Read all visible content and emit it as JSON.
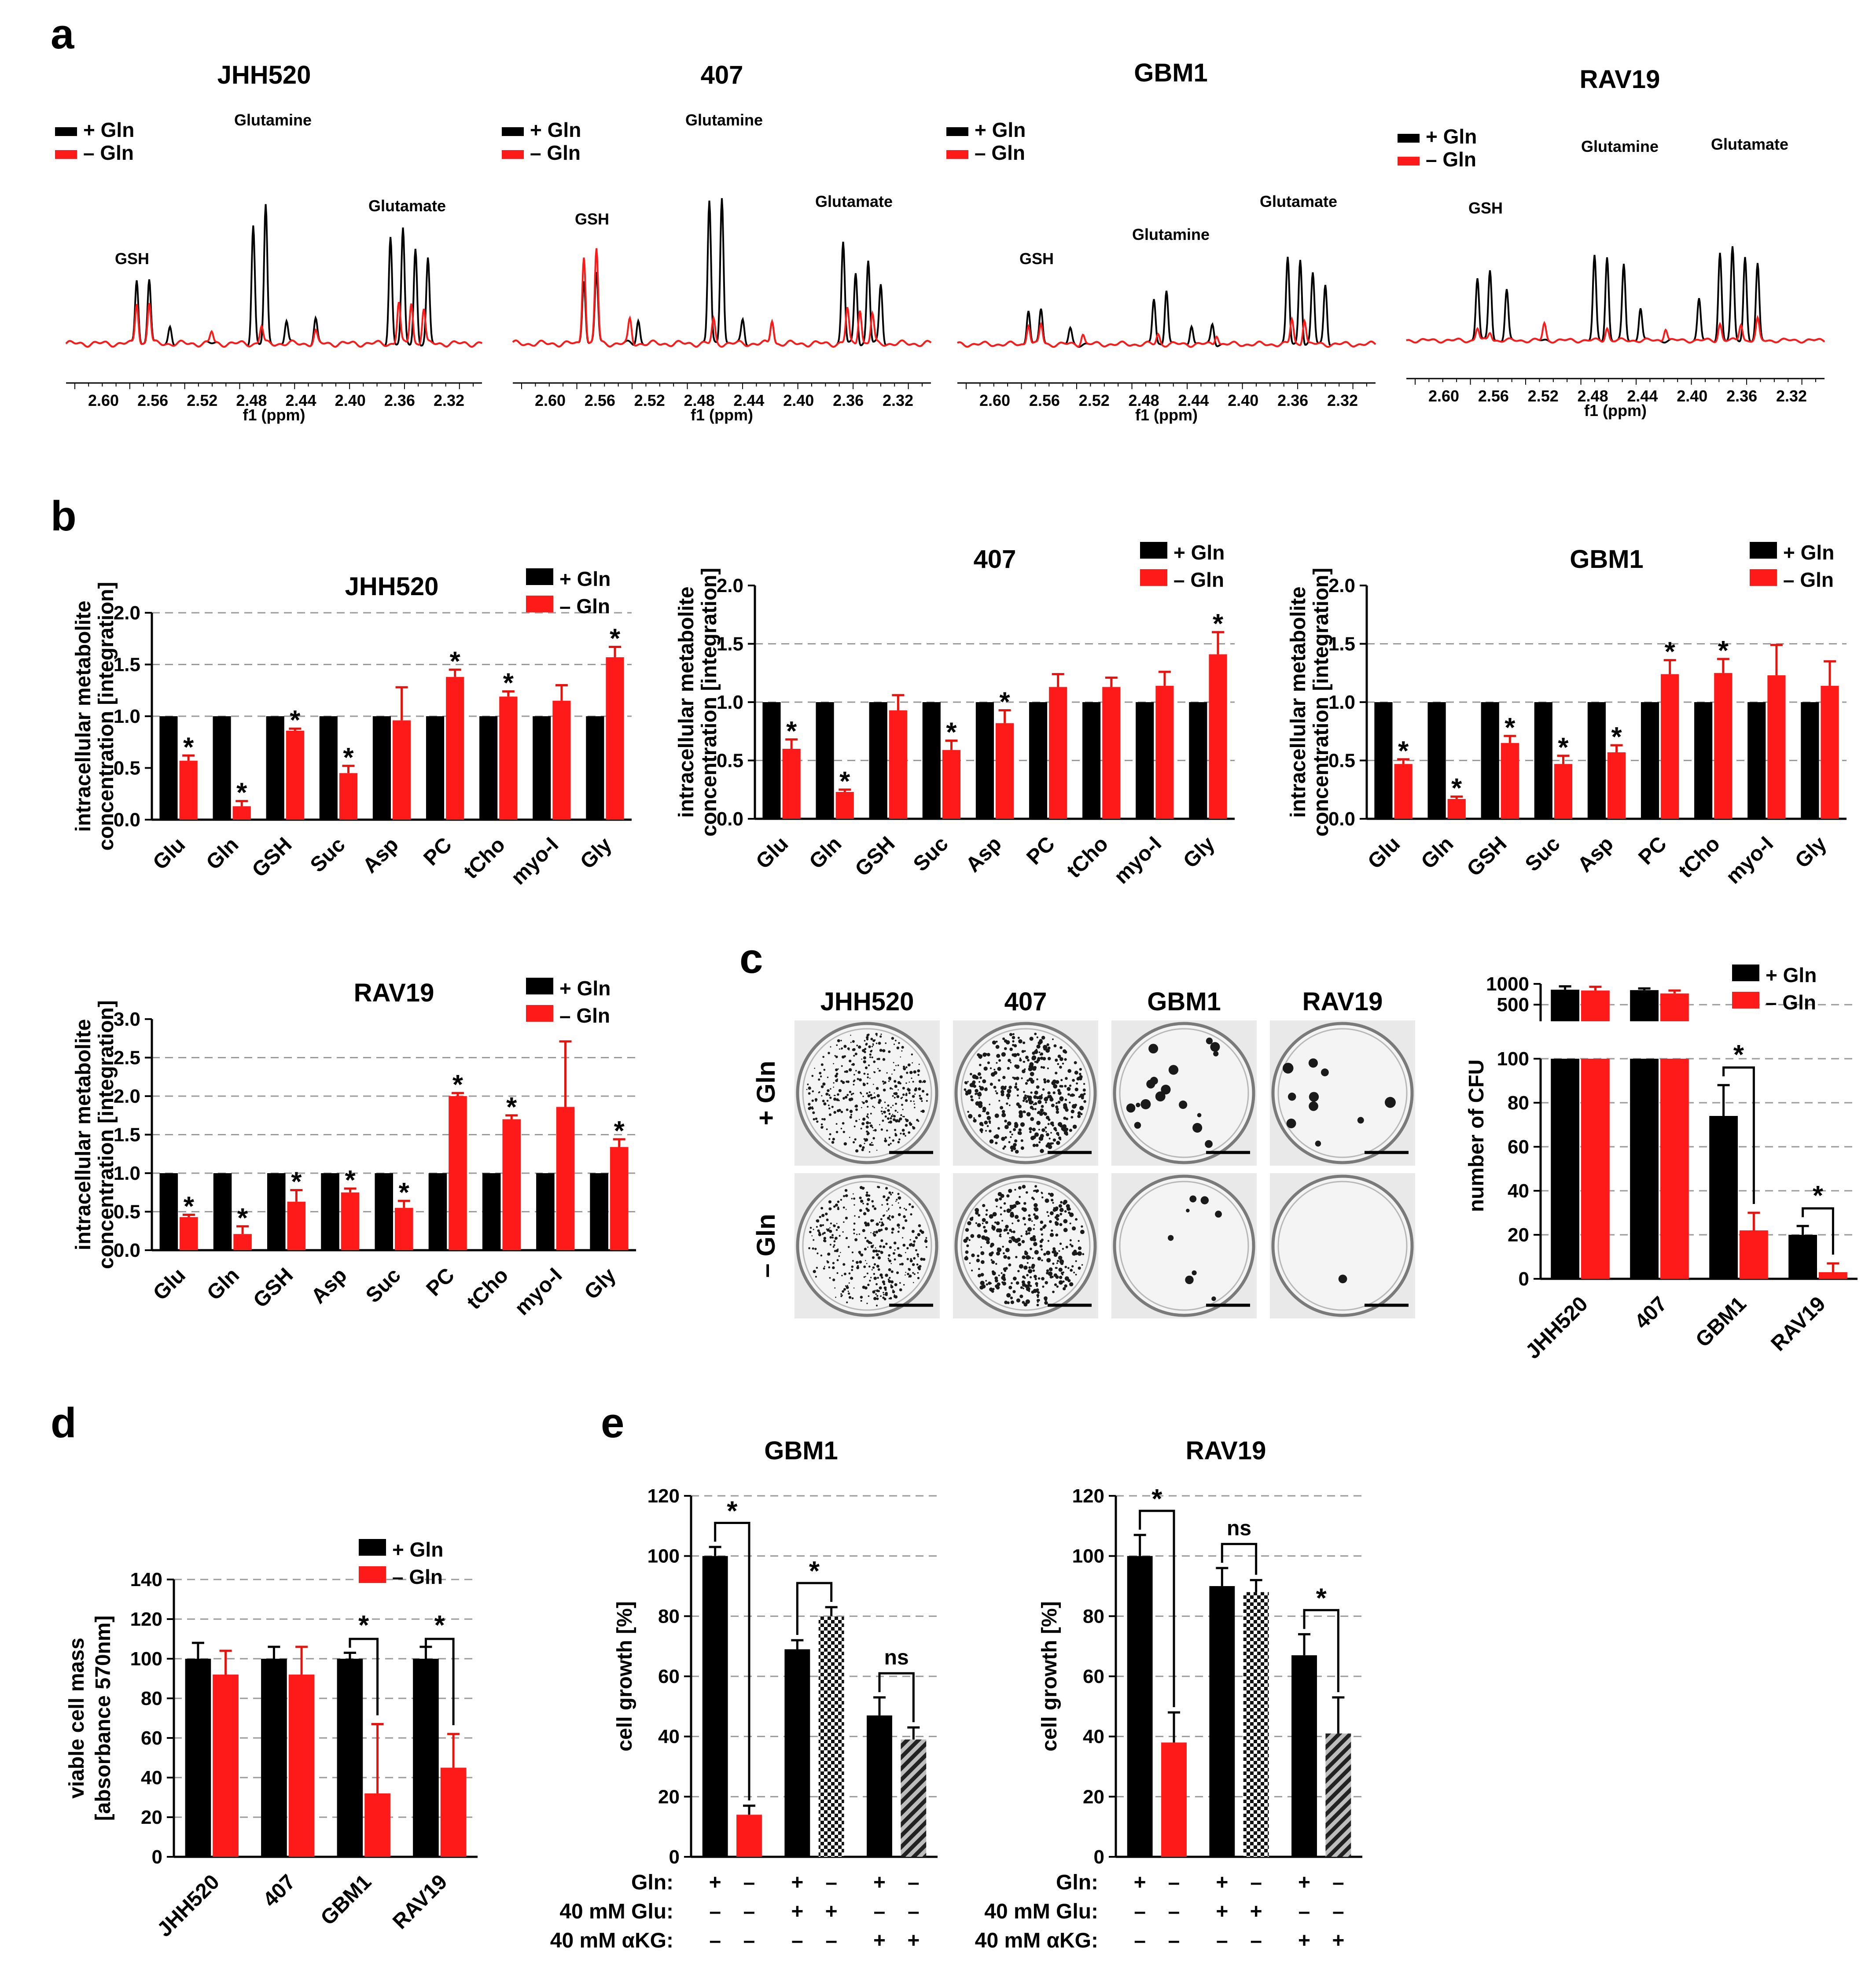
{
  "colors": {
    "plus": "#000000",
    "minus": "#ff1a1a"
  },
  "legend": {
    "plus": "+ Gln",
    "minus": "– Gln"
  },
  "star": "*",
  "panels": {
    "a": "a",
    "b": "b",
    "c": "c",
    "d": "d",
    "e": "e"
  },
  "a": {
    "xlabel": "f1 (ppm)",
    "ticks": [
      "2.60",
      "2.56",
      "2.52",
      "2.48",
      "2.44",
      "2.40",
      "2.36",
      "2.32"
    ],
    "spectra": [
      {
        "title": "JHH520",
        "peaks": [
          "GSH",
          "Glutamine",
          "Glutamate"
        ]
      },
      {
        "title": "407",
        "peaks": [
          "GSH",
          "Glutamine",
          "Glutamate"
        ]
      },
      {
        "title": "GBM1",
        "peaks": [
          "GSH",
          "Glutamine",
          "Glutamate"
        ]
      },
      {
        "title": "RAV19",
        "peaks": [
          "GSH",
          "Glutamine",
          "Glutamate"
        ]
      }
    ]
  },
  "b": {
    "ylabel1": "intracellular metabolite",
    "ylabel2": "concentration [integration]"
  },
  "c": {
    "cells": [
      "JHH520",
      "407",
      "GBM1",
      "RAV19"
    ],
    "rows": [
      "+ Gln",
      "– Gln"
    ],
    "ylabel": "number of CFU"
  },
  "d": {
    "ylabel1": "viable cell mass",
    "ylabel2": "[absorbance 570nm]"
  },
  "e": {
    "ylabel": "cell growth [%]",
    "row_labels": [
      "Gln:",
      "40 mM Glu:",
      "40 mM αKG:"
    ],
    "sign_rows": [
      [
        "+",
        "–",
        "+",
        "–",
        "+",
        "–"
      ],
      [
        "–",
        "–",
        "+",
        "+",
        "–",
        "–"
      ],
      [
        "–",
        "–",
        "–",
        "–",
        "+",
        "+"
      ]
    ],
    "ns": "ns"
  },
  "chart_data": [
    {
      "type": "bar",
      "title": "JHH520",
      "ylabel": "intracellular metabolite concentration [integration]",
      "categories": [
        "Glu",
        "Gln",
        "GSH",
        "Suc",
        "Asp",
        "PC",
        "tCho",
        "myo-I",
        "Gly"
      ],
      "ylim": [
        0,
        2.0
      ],
      "yticks": [
        "0.0",
        "0.5",
        "1.0",
        "1.5",
        "2.0"
      ],
      "grid": [
        1.0,
        1.5,
        2.0
      ],
      "series": [
        {
          "name": "+ Gln",
          "values": [
            1,
            1,
            1,
            1,
            1,
            1,
            1,
            1,
            1
          ],
          "errors": [
            0,
            0,
            0,
            0,
            0,
            0,
            0,
            0,
            0
          ]
        },
        {
          "name": "– Gln",
          "values": [
            0.57,
            0.13,
            0.86,
            0.45,
            0.96,
            1.38,
            1.19,
            1.15,
            1.57
          ],
          "errors": [
            0.05,
            0.05,
            0.02,
            0.07,
            0.32,
            0.07,
            0.05,
            0.15,
            0.1
          ],
          "sig": [
            true,
            true,
            true,
            true,
            false,
            true,
            true,
            false,
            true
          ]
        }
      ]
    },
    {
      "type": "bar",
      "title": "407",
      "ylabel": "intracellular metabolite concentration [integration]",
      "categories": [
        "Glu",
        "Gln",
        "GSH",
        "Suc",
        "Asp",
        "PC",
        "tCho",
        "myo-I",
        "Gly"
      ],
      "ylim": [
        0,
        2.0
      ],
      "yticks": [
        "0.0",
        "0.5",
        "1.0",
        "1.5",
        "2.0"
      ],
      "grid": [
        0.5,
        1.0,
        1.5
      ],
      "series": [
        {
          "name": "+ Gln",
          "values": [
            1,
            1,
            1,
            1,
            1,
            1,
            1,
            1,
            1
          ],
          "errors": [
            0,
            0,
            0,
            0,
            0,
            0,
            0,
            0,
            0
          ]
        },
        {
          "name": "– Gln",
          "values": [
            0.6,
            0.23,
            0.93,
            0.59,
            0.82,
            1.13,
            1.13,
            1.14,
            1.41
          ],
          "errors": [
            0.08,
            0.02,
            0.13,
            0.08,
            0.11,
            0.11,
            0.08,
            0.12,
            0.19
          ],
          "sig": [
            true,
            true,
            false,
            true,
            true,
            false,
            false,
            false,
            true
          ]
        }
      ]
    },
    {
      "type": "bar",
      "title": "GBM1",
      "ylabel": "intracellular metabolite concentration [integration]",
      "categories": [
        "Glu",
        "Gln",
        "GSH",
        "Suc",
        "Asp",
        "PC",
        "tCho",
        "myo-I",
        "Gly"
      ],
      "ylim": [
        0,
        2.0
      ],
      "yticks": [
        "0.0",
        "0.5",
        "1.0",
        "1.5",
        "2.0"
      ],
      "grid": [
        0.5,
        1.0,
        1.5
      ],
      "series": [
        {
          "name": "+ Gln",
          "values": [
            1,
            1,
            1,
            1,
            1,
            1,
            1,
            1,
            1
          ],
          "errors": [
            0,
            0,
            0,
            0,
            0,
            0,
            0,
            0,
            0
          ]
        },
        {
          "name": "– Gln",
          "values": [
            0.47,
            0.17,
            0.65,
            0.47,
            0.57,
            1.24,
            1.25,
            1.23,
            1.14
          ],
          "errors": [
            0.04,
            0.02,
            0.06,
            0.07,
            0.06,
            0.12,
            0.12,
            0.26,
            0.21
          ],
          "sig": [
            true,
            true,
            true,
            true,
            true,
            true,
            true,
            false,
            false
          ]
        }
      ]
    },
    {
      "type": "bar",
      "title": "RAV19",
      "ylabel": "intracellular metabolite concentration [integration]",
      "categories": [
        "Glu",
        "Gln",
        "GSH",
        "Asp",
        "Suc",
        "PC",
        "tCho",
        "myo-I",
        "Gly"
      ],
      "ylim": [
        0,
        3.0
      ],
      "yticks": [
        "0.0",
        "0.5",
        "1.0",
        "1.5",
        "2.0",
        "2.5",
        "3.0"
      ],
      "grid": [
        0.5,
        1.0,
        1.5,
        2.0,
        2.5
      ],
      "series": [
        {
          "name": "+ Gln",
          "values": [
            1,
            1,
            1,
            1,
            1,
            1,
            1,
            1,
            1
          ],
          "errors": [
            0,
            0,
            0,
            0,
            0,
            0,
            0,
            0,
            0
          ]
        },
        {
          "name": "– Gln",
          "values": [
            0.43,
            0.21,
            0.63,
            0.75,
            0.55,
            2.0,
            1.7,
            1.86,
            1.34
          ],
          "errors": [
            0.03,
            0.1,
            0.15,
            0.05,
            0.09,
            0.04,
            0.05,
            0.85,
            0.1
          ],
          "sig": [
            true,
            true,
            true,
            true,
            true,
            true,
            true,
            false,
            true
          ]
        }
      ]
    },
    {
      "type": "bar",
      "title": "number of CFU",
      "ylabel": "number of CFU",
      "categories": [
        "JHH520",
        "407",
        "GBM1",
        "RAV19"
      ],
      "broken_axis": {
        "lower": [
          0,
          100
        ],
        "upper": [
          100,
          1000
        ]
      },
      "yticks": [
        "0",
        "20",
        "40",
        "60",
        "80",
        "100",
        "500",
        "1000"
      ],
      "series": [
        {
          "name": "+ Gln",
          "values": [
            860,
            850,
            74,
            20
          ],
          "errors": [
            80,
            40,
            14,
            4
          ]
        },
        {
          "name": "– Gln",
          "values": [
            840,
            770,
            22,
            3
          ],
          "errors": [
            90,
            70,
            8,
            4
          ]
        }
      ],
      "sig_pairs": [
        2,
        3
      ]
    },
    {
      "type": "bar",
      "title": "viable cell mass",
      "ylabel": "viable cell mass [absorbance 570nm]",
      "categories": [
        "JHH520",
        "407",
        "GBM1",
        "RAV19"
      ],
      "ylim": [
        0,
        140
      ],
      "yticks": [
        "0",
        "20",
        "40",
        "60",
        "80",
        "100",
        "120",
        "140"
      ],
      "grid": [
        20,
        40,
        60,
        80,
        100,
        120,
        140
      ],
      "series": [
        {
          "name": "+ Gln",
          "values": [
            100,
            100,
            100,
            100
          ],
          "errors": [
            8,
            6,
            3,
            6
          ]
        },
        {
          "name": "– Gln",
          "values": [
            92,
            92,
            32,
            45
          ],
          "errors": [
            12,
            14,
            35,
            17
          ]
        }
      ],
      "sig_pairs": [
        2,
        3
      ]
    },
    {
      "type": "bar",
      "title": "GBM1",
      "ylabel": "cell growth [%]",
      "ylim": [
        0,
        120
      ],
      "yticks": [
        "0",
        "20",
        "40",
        "60",
        "80",
        "100",
        "120"
      ],
      "grid": [
        20,
        40,
        60,
        80,
        100,
        120
      ],
      "values": [
        100,
        14,
        69,
        80,
        47,
        39
      ],
      "errors": [
        3,
        3,
        3,
        3,
        6,
        4
      ],
      "styles": [
        "black",
        "red",
        "black",
        "checker",
        "black",
        "hatch"
      ],
      "brackets": [
        {
          "pair": [
            0,
            1
          ],
          "label": "*"
        },
        {
          "pair": [
            2,
            3
          ],
          "label": "*"
        },
        {
          "pair": [
            4,
            5
          ],
          "label": "ns"
        }
      ]
    },
    {
      "type": "bar",
      "title": "RAV19",
      "ylabel": "cell growth [%]",
      "ylim": [
        0,
        120
      ],
      "yticks": [
        "0",
        "20",
        "40",
        "60",
        "80",
        "100",
        "120"
      ],
      "grid": [
        20,
        40,
        60,
        80,
        100,
        120
      ],
      "values": [
        100,
        38,
        90,
        88,
        67,
        41
      ],
      "errors": [
        7,
        10,
        6,
        4,
        7,
        12
      ],
      "styles": [
        "black",
        "red",
        "black",
        "checker",
        "black",
        "hatch"
      ],
      "brackets": [
        {
          "pair": [
            0,
            1
          ],
          "label": "*"
        },
        {
          "pair": [
            2,
            3
          ],
          "label": "ns"
        },
        {
          "pair": [
            4,
            5
          ],
          "label": "*"
        }
      ]
    }
  ]
}
